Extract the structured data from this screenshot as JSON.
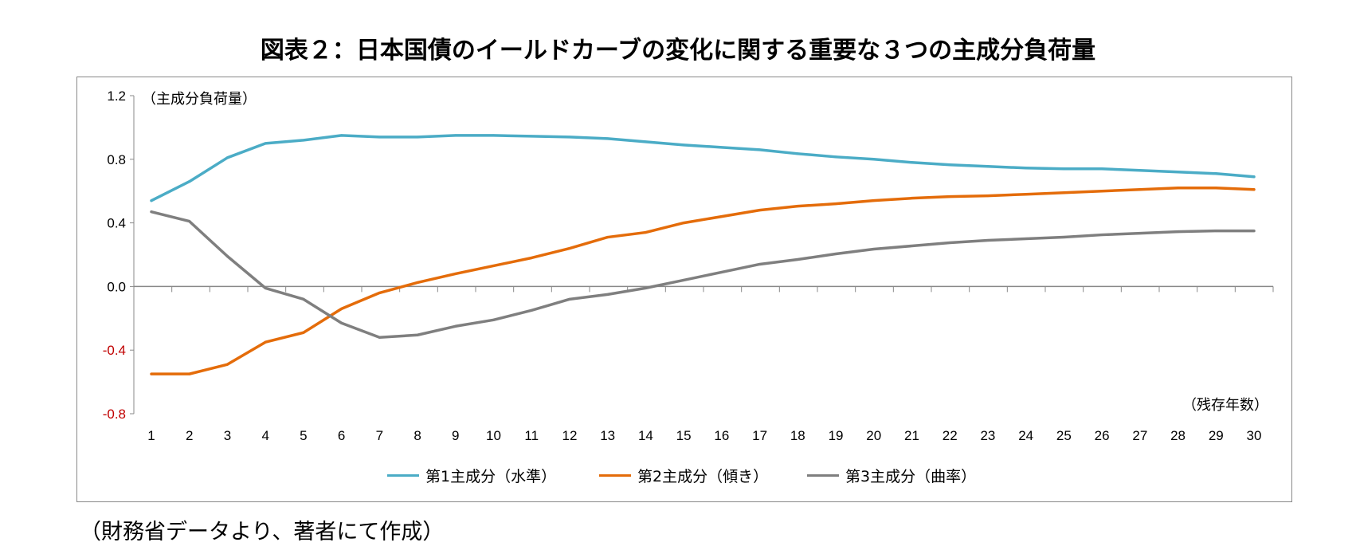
{
  "title": "図表２：日本国債のイールドカーブの変化に関する重要な３つの主成分負荷量",
  "note": "（財務省データより、著者にて作成）",
  "chart_data": {
    "type": "line",
    "ylabel": "（主成分負荷量）",
    "xlabel": "（残存年数）",
    "ylim": [
      -0.8,
      1.2
    ],
    "yticks": [
      "1.2",
      "0.8",
      "0.4",
      "0.0",
      "-0.4",
      "-0.8"
    ],
    "ytick_values": [
      1.2,
      0.8,
      0.4,
      0.0,
      -0.4,
      -0.8
    ],
    "negative_tick_color": "#C00000",
    "grid": false,
    "legend_position": "bottom",
    "x": [
      1,
      2,
      3,
      4,
      5,
      6,
      7,
      8,
      9,
      10,
      11,
      12,
      13,
      14,
      15,
      16,
      17,
      18,
      19,
      20,
      21,
      22,
      23,
      24,
      25,
      26,
      27,
      28,
      29,
      30
    ],
    "series": [
      {
        "name": "第1主成分（水準）",
        "color": "#4BACC6",
        "values": [
          0.54,
          0.66,
          0.81,
          0.9,
          0.92,
          0.95,
          0.94,
          0.94,
          0.95,
          0.95,
          0.945,
          0.94,
          0.93,
          0.91,
          0.89,
          0.875,
          0.86,
          0.835,
          0.815,
          0.8,
          0.78,
          0.765,
          0.755,
          0.745,
          0.74,
          0.74,
          0.73,
          0.72,
          0.71,
          0.69
        ]
      },
      {
        "name": "第2主成分（傾き）",
        "color": "#E46C0A",
        "values": [
          -0.55,
          -0.55,
          -0.49,
          -0.35,
          -0.29,
          -0.14,
          -0.04,
          0.025,
          0.08,
          0.13,
          0.18,
          0.24,
          0.31,
          0.34,
          0.4,
          0.44,
          0.48,
          0.505,
          0.52,
          0.54,
          0.555,
          0.565,
          0.57,
          0.58,
          0.59,
          0.6,
          0.61,
          0.62,
          0.62,
          0.61
        ]
      },
      {
        "name": "第3主成分（曲率）",
        "color": "#7F7F7F",
        "values": [
          0.47,
          0.41,
          0.19,
          -0.01,
          -0.08,
          -0.23,
          -0.32,
          -0.305,
          -0.25,
          -0.21,
          -0.15,
          -0.08,
          -0.05,
          -0.01,
          0.04,
          0.09,
          0.14,
          0.17,
          0.205,
          0.235,
          0.255,
          0.275,
          0.29,
          0.3,
          0.31,
          0.325,
          0.335,
          0.345,
          0.35,
          0.35
        ]
      }
    ]
  }
}
